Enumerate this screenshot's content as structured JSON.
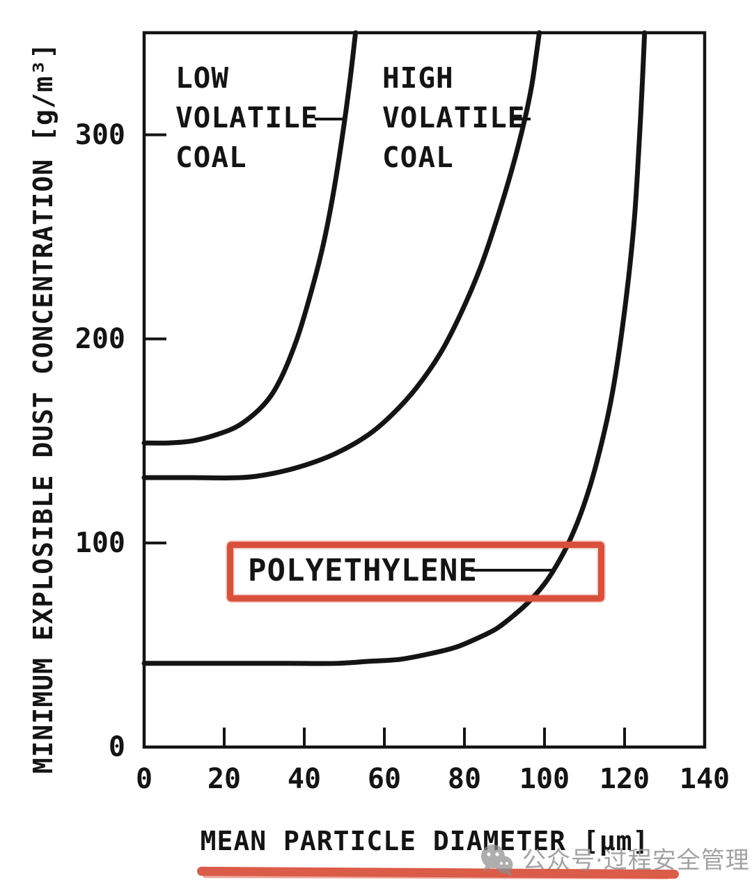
{
  "figure": {
    "background_color": "#ffffff",
    "ink_color": "#141414",
    "annotation_color": "#d8503c",
    "watermark": {
      "icon": "wechat-icon",
      "text": "公众号·过程安全管理",
      "color": "#999999"
    }
  },
  "chart_data": {
    "type": "line",
    "title": "",
    "xlabel": "MEAN PARTICLE DIAMETER [μm]",
    "ylabel": "MINIMUM EXPLOSIBLE DUST CONCENTRATION [g/m³]",
    "xlim": [
      0,
      140
    ],
    "ylim": [
      0,
      350
    ],
    "x_ticks": [
      0,
      20,
      40,
      60,
      80,
      100,
      120,
      140
    ],
    "y_ticks": [
      0,
      100,
      200,
      300
    ],
    "grid": false,
    "legend_position": "none",
    "series": [
      {
        "name": "LOW VOLATILE COAL",
        "label": "LOW\nVOLATILE\nCOAL",
        "min_explosible_concentration_g_m3": 149,
        "vertical_asymptote_um": 53,
        "points": [
          [
            0,
            149
          ],
          [
            6,
            149
          ],
          [
            12,
            150
          ],
          [
            18,
            153
          ],
          [
            24,
            158
          ],
          [
            30,
            168
          ],
          [
            34,
            180
          ],
          [
            38,
            199
          ],
          [
            41,
            218
          ],
          [
            44,
            240
          ],
          [
            46,
            258
          ],
          [
            48,
            280
          ],
          [
            50,
            306
          ],
          [
            51.5,
            328
          ],
          [
            52.8,
            350
          ]
        ]
      },
      {
        "name": "HIGH VOLATILE COAL",
        "label": "HIGH\nVOLATILE\nCOAL",
        "min_explosible_concentration_g_m3": 132,
        "vertical_asymptote_um": 99,
        "points": [
          [
            0,
            132
          ],
          [
            12,
            132
          ],
          [
            24,
            132
          ],
          [
            32,
            134
          ],
          [
            40,
            138
          ],
          [
            48,
            144
          ],
          [
            56,
            153
          ],
          [
            62,
            163
          ],
          [
            68,
            176
          ],
          [
            74,
            193
          ],
          [
            79,
            212
          ],
          [
            84,
            235
          ],
          [
            88,
            258
          ],
          [
            92,
            284
          ],
          [
            95,
            307
          ],
          [
            96.8,
            324
          ],
          [
            98,
            340
          ],
          [
            98.7,
            350
          ]
        ]
      },
      {
        "name": "POLYETHYLENE",
        "label": "POLYETHYLENE",
        "highlight": "red-box",
        "min_explosible_concentration_g_m3": 41,
        "vertical_asymptote_um": 125,
        "points": [
          [
            0,
            41
          ],
          [
            12,
            41
          ],
          [
            24,
            41
          ],
          [
            36,
            41
          ],
          [
            48,
            41
          ],
          [
            56,
            42
          ],
          [
            64,
            43
          ],
          [
            72,
            46
          ],
          [
            78,
            49
          ],
          [
            84,
            54
          ],
          [
            88,
            58
          ],
          [
            92,
            64
          ],
          [
            96,
            71
          ],
          [
            100,
            80
          ],
          [
            103,
            89
          ],
          [
            106,
            100
          ],
          [
            109,
            114
          ],
          [
            112,
            132
          ],
          [
            115,
            155
          ],
          [
            117,
            174
          ],
          [
            119,
            199
          ],
          [
            121,
            230
          ],
          [
            122.5,
            260
          ],
          [
            123.5,
            291
          ],
          [
            124.3,
            320
          ],
          [
            125,
            350
          ]
        ]
      }
    ]
  }
}
